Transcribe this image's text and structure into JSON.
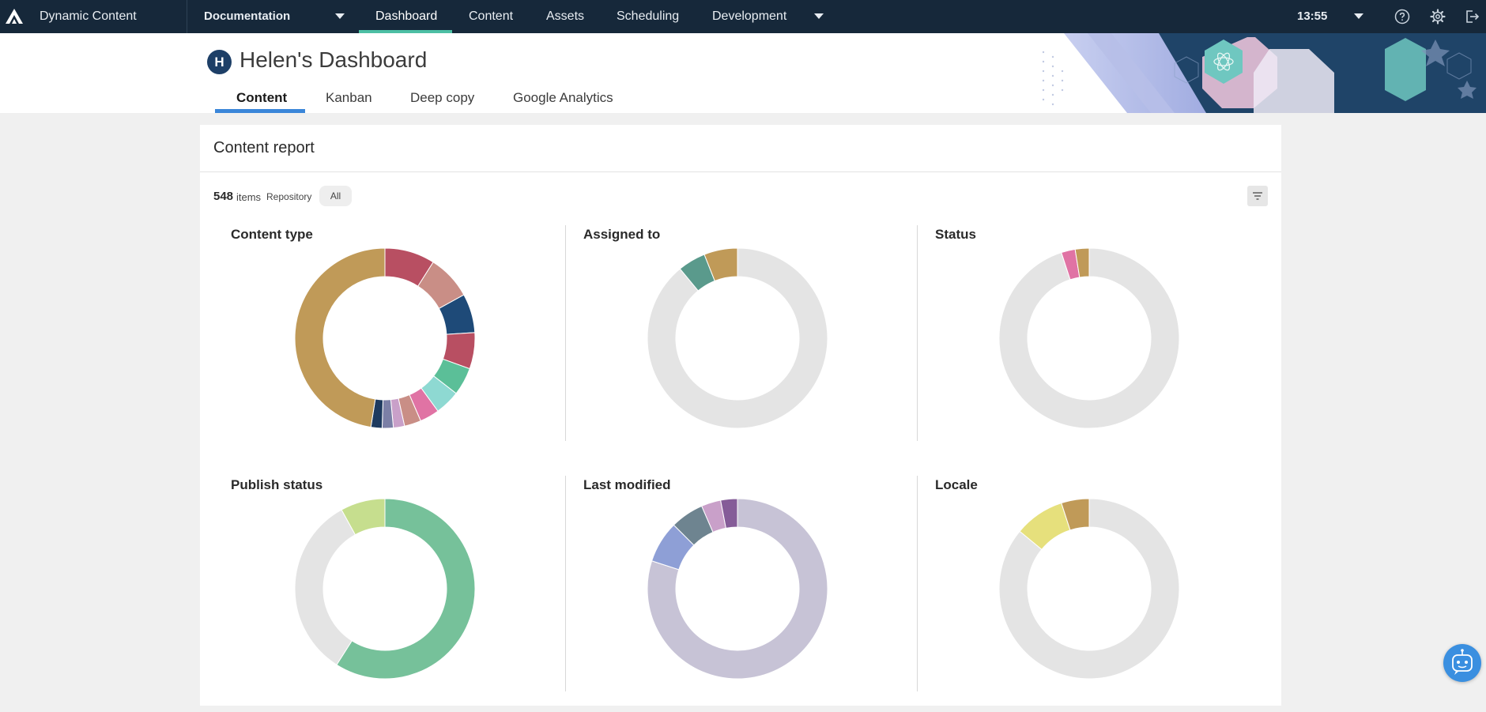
{
  "topbar": {
    "app_name": "Dynamic Content",
    "hub": "Documentation",
    "nav": [
      "Dashboard",
      "Content",
      "Assets",
      "Scheduling",
      "Development"
    ],
    "active_nav": "Dashboard",
    "time": "13:55",
    "icons": [
      "amplience-logo-icon",
      "help-icon",
      "settings-icon",
      "logout-icon"
    ]
  },
  "header": {
    "avatar_initial": "H",
    "title": "Helen's Dashboard",
    "tabs": [
      "Content",
      "Kanban",
      "Deep copy",
      "Google Analytics"
    ],
    "active_tab": "Content"
  },
  "report": {
    "title": "Content report",
    "count": "548",
    "count_unit": "items",
    "repository_label": "Repository",
    "repository_value": "All",
    "filter_icon": "filter-icon"
  },
  "colors": {
    "topbar_bg": "#16283a",
    "nav_active_underline": "#4dbfa4",
    "tab_active_underline": "#3b86d9",
    "avatar_bg": "#1d3f67",
    "empty_slice": "#e4e4e4"
  },
  "chart_data": [
    {
      "type": "pie",
      "title": "Content type",
      "slices": [
        {
          "value": 9,
          "color": "#b84f62"
        },
        {
          "value": 8,
          "color": "#c98e86"
        },
        {
          "value": 7,
          "color": "#1e4a78"
        },
        {
          "value": 6.5,
          "color": "#b84f62"
        },
        {
          "value": 5,
          "color": "#5bbf98"
        },
        {
          "value": 4.5,
          "color": "#8ed9d2"
        },
        {
          "value": 3.5,
          "color": "#e073a4"
        },
        {
          "value": 3,
          "color": "#c98e86"
        },
        {
          "value": 2,
          "color": "#c9a0c9"
        },
        {
          "value": 2,
          "color": "#7b7fa6"
        },
        {
          "value": 2,
          "color": "#1e3a5f"
        },
        {
          "value": 47.5,
          "color": "#c09a58"
        }
      ]
    },
    {
      "type": "pie",
      "title": "Assigned to",
      "slices": [
        {
          "value": 89,
          "color": "#e4e4e4"
        },
        {
          "value": 5,
          "color": "#5a9a8c"
        },
        {
          "value": 6,
          "color": "#c09a58"
        }
      ]
    },
    {
      "type": "pie",
      "title": "Status",
      "slices": [
        {
          "value": 95,
          "color": "#e4e4e4"
        },
        {
          "value": 2.5,
          "color": "#e073a4"
        },
        {
          "value": 2.5,
          "color": "#c09a58"
        }
      ]
    },
    {
      "type": "pie",
      "title": "Publish status",
      "slices": [
        {
          "value": 59,
          "color": "#76c19a"
        },
        {
          "value": 33,
          "color": "#e4e4e4"
        },
        {
          "value": 8,
          "color": "#c6de8e"
        }
      ]
    },
    {
      "type": "pie",
      "title": "Last modified",
      "slices": [
        {
          "value": 80,
          "color": "#c7c3d6"
        },
        {
          "value": 7.5,
          "color": "#8e9fd6"
        },
        {
          "value": 6,
          "color": "#6e8490"
        },
        {
          "value": 3.5,
          "color": "#c9a0c9"
        },
        {
          "value": 3,
          "color": "#855c98"
        }
      ]
    },
    {
      "type": "pie",
      "title": "Locale",
      "slices": [
        {
          "value": 86,
          "color": "#e4e4e4"
        },
        {
          "value": 9,
          "color": "#e6e07c"
        },
        {
          "value": 5,
          "color": "#c09a58"
        }
      ]
    }
  ]
}
